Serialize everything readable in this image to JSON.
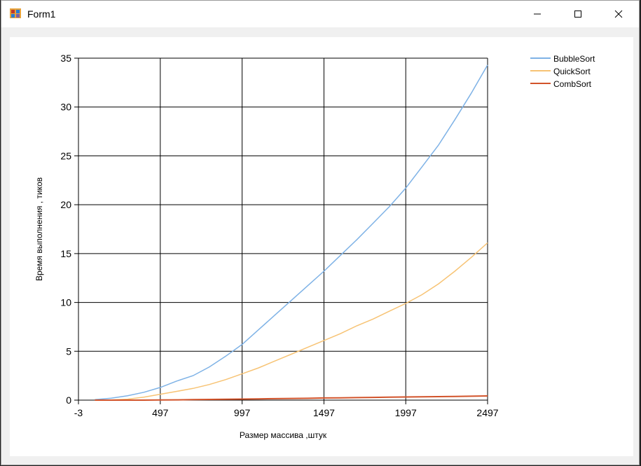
{
  "window": {
    "title": "Form1"
  },
  "controls": {
    "minimize": "minimize",
    "maximize": "maximize",
    "close": "close"
  },
  "colors": {
    "BubbleSort": "#7eb2e6",
    "QuickSort": "#f7c374",
    "CombSort": "#d2532a",
    "grid": "#000000"
  },
  "chart_data": {
    "type": "line",
    "title": "",
    "xlabel": "Размер массива ,штук",
    "ylabel": "Время выполнения , тиков",
    "xlim": [
      -3,
      2497
    ],
    "ylim": [
      0,
      35
    ],
    "x_ticks": [
      -3,
      497,
      997,
      1497,
      1997,
      2497
    ],
    "y_ticks": [
      0,
      5,
      10,
      15,
      20,
      25,
      30,
      35
    ],
    "grid": true,
    "legend_position": "top-right",
    "series": [
      {
        "name": "BubbleSort",
        "x": [
          97,
          197,
          297,
          397,
          497,
          597,
          697,
          797,
          897,
          997,
          1097,
          1197,
          1297,
          1397,
          1497,
          1597,
          1697,
          1797,
          1897,
          1997,
          2097,
          2197,
          2297,
          2397,
          2497
        ],
        "y": [
          0.05,
          0.2,
          0.45,
          0.8,
          1.3,
          1.95,
          2.5,
          3.4,
          4.5,
          5.7,
          7.2,
          8.7,
          10.2,
          11.7,
          13.2,
          14.8,
          16.4,
          18.1,
          19.8,
          21.7,
          23.9,
          26.1,
          28.7,
          31.4,
          34.3
        ]
      },
      {
        "name": "QuickSort",
        "x": [
          97,
          197,
          297,
          397,
          497,
          597,
          697,
          797,
          897,
          997,
          1097,
          1197,
          1297,
          1397,
          1497,
          1597,
          1697,
          1797,
          1897,
          1997,
          2097,
          2197,
          2297,
          2397,
          2497
        ],
        "y": [
          0.0,
          0.02,
          0.1,
          0.3,
          0.6,
          0.9,
          1.2,
          1.6,
          2.1,
          2.7,
          3.3,
          4.0,
          4.7,
          5.4,
          6.1,
          6.8,
          7.6,
          8.3,
          9.1,
          9.9,
          10.8,
          11.9,
          13.2,
          14.6,
          16.1
        ]
      },
      {
        "name": "CombSort",
        "x": [
          97,
          197,
          297,
          397,
          497,
          597,
          697,
          797,
          897,
          997,
          1097,
          1197,
          1297,
          1397,
          1497,
          1597,
          1697,
          1797,
          1897,
          1997,
          2097,
          2197,
          2297,
          2397,
          2497
        ],
        "y": [
          0.0,
          0.0,
          0.0,
          0.0,
          0.02,
          0.03,
          0.05,
          0.07,
          0.09,
          0.11,
          0.13,
          0.15,
          0.17,
          0.19,
          0.22,
          0.24,
          0.26,
          0.28,
          0.3,
          0.32,
          0.34,
          0.36,
          0.38,
          0.4,
          0.43
        ]
      }
    ]
  }
}
